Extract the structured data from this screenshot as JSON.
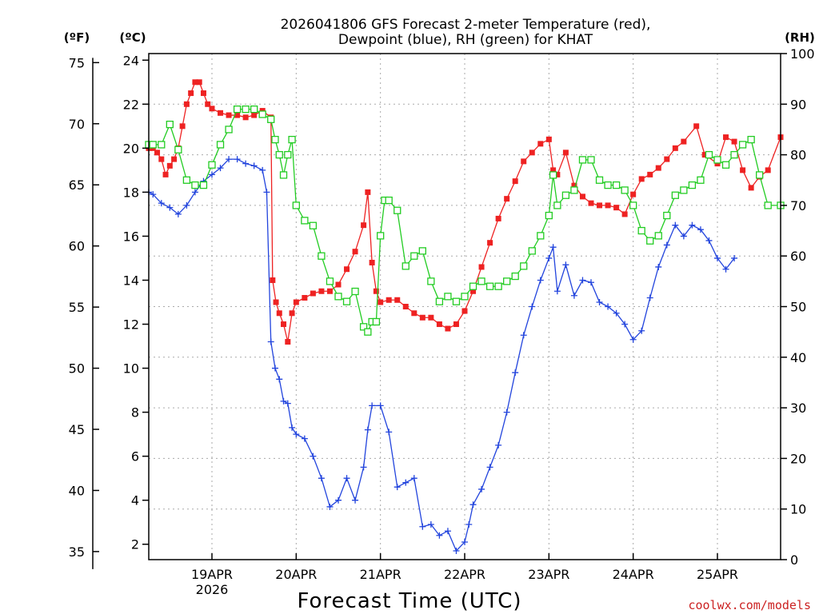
{
  "chart_data": {
    "type": "line",
    "title_line1": "2026041806 GFS Forecast 2-meter Temperature (red),",
    "title_line2": "Dewpoint (blue), RH (green) for KHAT",
    "xlabel": "Forecast Time (UTC)",
    "credit": "coolwx.com/models",
    "axis_f_label": "(ºF)",
    "axis_c_label": "(ºC)",
    "axis_rh_label": "(RH)",
    "x_start_day": 18.25,
    "x_end_day": 25.75,
    "ylim_c": [
      1.3,
      24.3
    ],
    "ylim_rh": [
      0,
      100
    ],
    "x_ticks": [
      {
        "day": 19,
        "label": "19APR",
        "sublabel": "2026"
      },
      {
        "day": 20,
        "label": "20APR",
        "sublabel": ""
      },
      {
        "day": 21,
        "label": "21APR",
        "sublabel": ""
      },
      {
        "day": 22,
        "label": "22APR",
        "sublabel": ""
      },
      {
        "day": 23,
        "label": "23APR",
        "sublabel": ""
      },
      {
        "day": 24,
        "label": "24APR",
        "sublabel": ""
      },
      {
        "day": 25,
        "label": "25APR",
        "sublabel": ""
      }
    ],
    "c_ticks": [
      "2",
      "4",
      "6",
      "8",
      "10",
      "12",
      "14",
      "16",
      "18",
      "20",
      "22",
      "24"
    ],
    "f_ticks": [
      "35",
      "40",
      "45",
      "50",
      "55",
      "60",
      "65",
      "70",
      "75"
    ],
    "rh_ticks": [
      "0",
      "10",
      "20",
      "30",
      "40",
      "50",
      "60",
      "70",
      "80",
      "90",
      "100"
    ],
    "series": [
      {
        "name": "2-meter Temperature (°C)",
        "color": "#ee2222",
        "marker": "filled-square",
        "points": [
          [
            18.25,
            20.0
          ],
          [
            18.3,
            20.0
          ],
          [
            18.35,
            19.8
          ],
          [
            18.4,
            19.5
          ],
          [
            18.45,
            18.8
          ],
          [
            18.5,
            19.2
          ],
          [
            18.55,
            19.5
          ],
          [
            18.6,
            20.0
          ],
          [
            18.65,
            21.0
          ],
          [
            18.7,
            22.0
          ],
          [
            18.75,
            22.5
          ],
          [
            18.8,
            23.0
          ],
          [
            18.85,
            23.0
          ],
          [
            18.9,
            22.5
          ],
          [
            18.95,
            22.0
          ],
          [
            19.0,
            21.8
          ],
          [
            19.1,
            21.6
          ],
          [
            19.2,
            21.5
          ],
          [
            19.3,
            21.5
          ],
          [
            19.4,
            21.4
          ],
          [
            19.5,
            21.5
          ],
          [
            19.6,
            21.7
          ],
          [
            19.7,
            21.4
          ],
          [
            19.72,
            14.0
          ],
          [
            19.76,
            13.0
          ],
          [
            19.8,
            12.5
          ],
          [
            19.85,
            12.0
          ],
          [
            19.9,
            11.2
          ],
          [
            19.95,
            12.5
          ],
          [
            20.0,
            13.0
          ],
          [
            20.1,
            13.2
          ],
          [
            20.2,
            13.4
          ],
          [
            20.3,
            13.5
          ],
          [
            20.4,
            13.5
          ],
          [
            20.5,
            13.8
          ],
          [
            20.6,
            14.5
          ],
          [
            20.7,
            15.3
          ],
          [
            20.8,
            16.5
          ],
          [
            20.85,
            18.0
          ],
          [
            20.9,
            14.8
          ],
          [
            20.95,
            13.5
          ],
          [
            21.0,
            13.0
          ],
          [
            21.1,
            13.1
          ],
          [
            21.2,
            13.1
          ],
          [
            21.3,
            12.8
          ],
          [
            21.4,
            12.5
          ],
          [
            21.5,
            12.3
          ],
          [
            21.6,
            12.3
          ],
          [
            21.7,
            12.0
          ],
          [
            21.8,
            11.8
          ],
          [
            21.9,
            12.0
          ],
          [
            22.0,
            12.6
          ],
          [
            22.1,
            13.5
          ],
          [
            22.2,
            14.6
          ],
          [
            22.3,
            15.7
          ],
          [
            22.4,
            16.8
          ],
          [
            22.5,
            17.7
          ],
          [
            22.6,
            18.5
          ],
          [
            22.7,
            19.4
          ],
          [
            22.8,
            19.8
          ],
          [
            22.9,
            20.2
          ],
          [
            23.0,
            20.4
          ],
          [
            23.05,
            19.0
          ],
          [
            23.1,
            18.8
          ],
          [
            23.2,
            19.8
          ],
          [
            23.3,
            18.3
          ],
          [
            23.4,
            17.8
          ],
          [
            23.5,
            17.5
          ],
          [
            23.6,
            17.4
          ],
          [
            23.7,
            17.4
          ],
          [
            23.8,
            17.3
          ],
          [
            23.9,
            17.0
          ],
          [
            24.0,
            17.9
          ],
          [
            24.1,
            18.6
          ],
          [
            24.2,
            18.8
          ],
          [
            24.3,
            19.1
          ],
          [
            24.4,
            19.5
          ],
          [
            24.5,
            20.0
          ],
          [
            24.6,
            20.3
          ],
          [
            24.75,
            21.0
          ],
          [
            24.85,
            19.7
          ],
          [
            25.0,
            19.3
          ],
          [
            25.1,
            20.5
          ],
          [
            25.2,
            20.3
          ],
          [
            25.3,
            19.0
          ],
          [
            25.4,
            18.2
          ],
          [
            25.5,
            18.7
          ],
          [
            25.6,
            19.0
          ],
          [
            25.75,
            20.5
          ]
        ]
      },
      {
        "name": "Dewpoint (°C)",
        "color": "#2244dd",
        "marker": "plus",
        "points": [
          [
            18.25,
            18.0
          ],
          [
            18.3,
            17.9
          ],
          [
            18.4,
            17.5
          ],
          [
            18.5,
            17.3
          ],
          [
            18.6,
            17.0
          ],
          [
            18.7,
            17.4
          ],
          [
            18.8,
            18.0
          ],
          [
            18.9,
            18.5
          ],
          [
            19.0,
            18.8
          ],
          [
            19.1,
            19.1
          ],
          [
            19.2,
            19.5
          ],
          [
            19.3,
            19.5
          ],
          [
            19.4,
            19.3
          ],
          [
            19.5,
            19.2
          ],
          [
            19.6,
            19.0
          ],
          [
            19.65,
            18.0
          ],
          [
            19.7,
            11.2
          ],
          [
            19.75,
            10.0
          ],
          [
            19.8,
            9.5
          ],
          [
            19.85,
            8.5
          ],
          [
            19.9,
            8.4
          ],
          [
            19.95,
            7.3
          ],
          [
            20.0,
            7.0
          ],
          [
            20.1,
            6.8
          ],
          [
            20.2,
            6.0
          ],
          [
            20.3,
            5.0
          ],
          [
            20.4,
            3.7
          ],
          [
            20.5,
            4.0
          ],
          [
            20.6,
            5.0
          ],
          [
            20.7,
            4.0
          ],
          [
            20.8,
            5.5
          ],
          [
            20.85,
            7.2
          ],
          [
            20.9,
            8.3
          ],
          [
            21.0,
            8.3
          ],
          [
            21.1,
            7.1
          ],
          [
            21.2,
            4.6
          ],
          [
            21.3,
            4.8
          ],
          [
            21.4,
            5.0
          ],
          [
            21.5,
            2.8
          ],
          [
            21.6,
            2.9
          ],
          [
            21.7,
            2.4
          ],
          [
            21.8,
            2.6
          ],
          [
            21.9,
            1.7
          ],
          [
            22.0,
            2.1
          ],
          [
            22.05,
            2.9
          ],
          [
            22.1,
            3.8
          ],
          [
            22.2,
            4.5
          ],
          [
            22.3,
            5.5
          ],
          [
            22.4,
            6.5
          ],
          [
            22.5,
            8.0
          ],
          [
            22.6,
            9.8
          ],
          [
            22.7,
            11.5
          ],
          [
            22.8,
            12.8
          ],
          [
            22.9,
            14.0
          ],
          [
            23.0,
            15.0
          ],
          [
            23.05,
            15.5
          ],
          [
            23.1,
            13.5
          ],
          [
            23.2,
            14.7
          ],
          [
            23.3,
            13.3
          ],
          [
            23.4,
            14.0
          ],
          [
            23.5,
            13.9
          ],
          [
            23.6,
            13.0
          ],
          [
            23.7,
            12.8
          ],
          [
            23.8,
            12.5
          ],
          [
            23.9,
            12.0
          ],
          [
            24.0,
            11.3
          ],
          [
            24.1,
            11.7
          ],
          [
            24.2,
            13.2
          ],
          [
            24.3,
            14.6
          ],
          [
            24.4,
            15.6
          ],
          [
            24.5,
            16.5
          ],
          [
            24.6,
            16.0
          ],
          [
            24.7,
            16.5
          ],
          [
            24.8,
            16.3
          ],
          [
            24.9,
            15.8
          ],
          [
            25.0,
            15.0
          ],
          [
            25.1,
            14.5
          ],
          [
            25.2,
            15.0
          ]
        ]
      },
      {
        "name": "RH (%)",
        "color": "#22cc22",
        "marker": "open-square",
        "points": [
          [
            18.25,
            82
          ],
          [
            18.3,
            82
          ],
          [
            18.4,
            82
          ],
          [
            18.5,
            86
          ],
          [
            18.6,
            81
          ],
          [
            18.7,
            75
          ],
          [
            18.8,
            74
          ],
          [
            18.9,
            74
          ],
          [
            19.0,
            78
          ],
          [
            19.1,
            82
          ],
          [
            19.2,
            85
          ],
          [
            19.3,
            89
          ],
          [
            19.4,
            89
          ],
          [
            19.5,
            89
          ],
          [
            19.6,
            88
          ],
          [
            19.7,
            87
          ],
          [
            19.75,
            83
          ],
          [
            19.8,
            80
          ],
          [
            19.85,
            76
          ],
          [
            19.9,
            80
          ],
          [
            19.95,
            83
          ],
          [
            20.0,
            70
          ],
          [
            20.1,
            67
          ],
          [
            20.2,
            66
          ],
          [
            20.3,
            60
          ],
          [
            20.4,
            55
          ],
          [
            20.5,
            52
          ],
          [
            20.6,
            51
          ],
          [
            20.7,
            53
          ],
          [
            20.8,
            46
          ],
          [
            20.85,
            45
          ],
          [
            20.9,
            47
          ],
          [
            20.95,
            47
          ],
          [
            21.0,
            64
          ],
          [
            21.05,
            71
          ],
          [
            21.1,
            71
          ],
          [
            21.2,
            69
          ],
          [
            21.3,
            58
          ],
          [
            21.4,
            60
          ],
          [
            21.5,
            61
          ],
          [
            21.6,
            55
          ],
          [
            21.7,
            51
          ],
          [
            21.8,
            52
          ],
          [
            21.9,
            51
          ],
          [
            22.0,
            52
          ],
          [
            22.1,
            54
          ],
          [
            22.2,
            55
          ],
          [
            22.3,
            54
          ],
          [
            22.4,
            54
          ],
          [
            22.5,
            55
          ],
          [
            22.6,
            56
          ],
          [
            22.7,
            58
          ],
          [
            22.8,
            61
          ],
          [
            22.9,
            64
          ],
          [
            23.0,
            68
          ],
          [
            23.05,
            76
          ],
          [
            23.1,
            70
          ],
          [
            23.2,
            72
          ],
          [
            23.3,
            73
          ],
          [
            23.4,
            79
          ],
          [
            23.5,
            79
          ],
          [
            23.6,
            75
          ],
          [
            23.7,
            74
          ],
          [
            23.8,
            74
          ],
          [
            23.9,
            73
          ],
          [
            24.0,
            70
          ],
          [
            24.1,
            65
          ],
          [
            24.2,
            63
          ],
          [
            24.3,
            64
          ],
          [
            24.4,
            68
          ],
          [
            24.5,
            72
          ],
          [
            24.6,
            73
          ],
          [
            24.7,
            74
          ],
          [
            24.8,
            75
          ],
          [
            24.9,
            80
          ],
          [
            25.0,
            79
          ],
          [
            25.1,
            78
          ],
          [
            25.2,
            80
          ],
          [
            25.3,
            82
          ],
          [
            25.4,
            83
          ],
          [
            25.5,
            76
          ],
          [
            25.6,
            70
          ],
          [
            25.75,
            70
          ]
        ]
      }
    ]
  }
}
